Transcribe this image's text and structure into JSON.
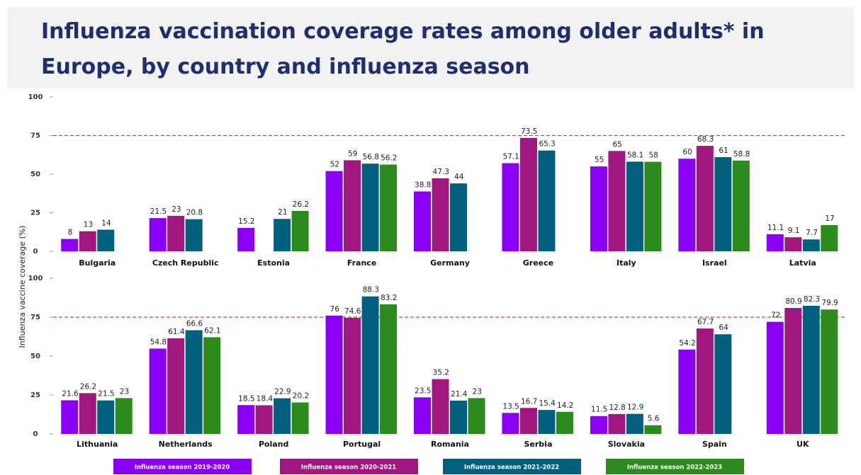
{
  "title": "Influenza vaccination coverage rates among older adults* in Europe, by country and influenza season",
  "y_label": "Influenza vaccine coverage (%)",
  "series": [
    {
      "name": "Influenza season 2019-2020",
      "color": "#8a00f5"
    },
    {
      "name": "Influenza season 2020-2021",
      "color": "#a0187f"
    },
    {
      "name": "Influenza season 2021-2022",
      "color": "#02607f"
    },
    {
      "name": "Influenza season 2022-2023",
      "color": "#2d8a1c"
    }
  ],
  "chart_data": [
    {
      "type": "bar",
      "categories": [
        "Bulgaria",
        "Czech Republic",
        "Estonia",
        "France",
        "Germany",
        "Greece",
        "Italy",
        "Israel",
        "Latvia"
      ],
      "values": [
        [
          8,
          21.5,
          15.2,
          52,
          38.8,
          57.1,
          55,
          60,
          11.1
        ],
        [
          13,
          23,
          null,
          59,
          47.3,
          73.5,
          65,
          68.3,
          9.1
        ],
        [
          14,
          20.8,
          21,
          56.8,
          44,
          65.3,
          58.1,
          61,
          7.7
        ],
        [
          null,
          null,
          26.2,
          56.2,
          null,
          null,
          58,
          58.8,
          17
        ]
      ],
      "ylim": [
        0,
        100
      ],
      "yticks": [
        0,
        25,
        50,
        75,
        100
      ],
      "reference_line": {
        "value": 75,
        "color": "#e0392f"
      }
    },
    {
      "type": "bar",
      "categories": [
        "Lithuania",
        "Netherlands",
        "Poland",
        "Portugal",
        "Romania",
        "Serbia",
        "Slovakia",
        "Spain",
        "UK"
      ],
      "values": [
        [
          21.6,
          54.8,
          18.5,
          76,
          23.5,
          13.5,
          11.5,
          54.2,
          72
        ],
        [
          26.2,
          61.4,
          18.4,
          74.6,
          35.2,
          16.7,
          12.8,
          67.7,
          80.9
        ],
        [
          21.5,
          66.6,
          22.9,
          88.3,
          21.4,
          15.4,
          12.9,
          64,
          82.3
        ],
        [
          23,
          62.1,
          20.2,
          83.2,
          23,
          14.2,
          5.6,
          null,
          79.9
        ]
      ],
      "ylim": [
        0,
        100
      ],
      "yticks": [
        0,
        25,
        50,
        75,
        100
      ],
      "reference_line": {
        "value": 75,
        "color": "#e0392f"
      }
    }
  ]
}
